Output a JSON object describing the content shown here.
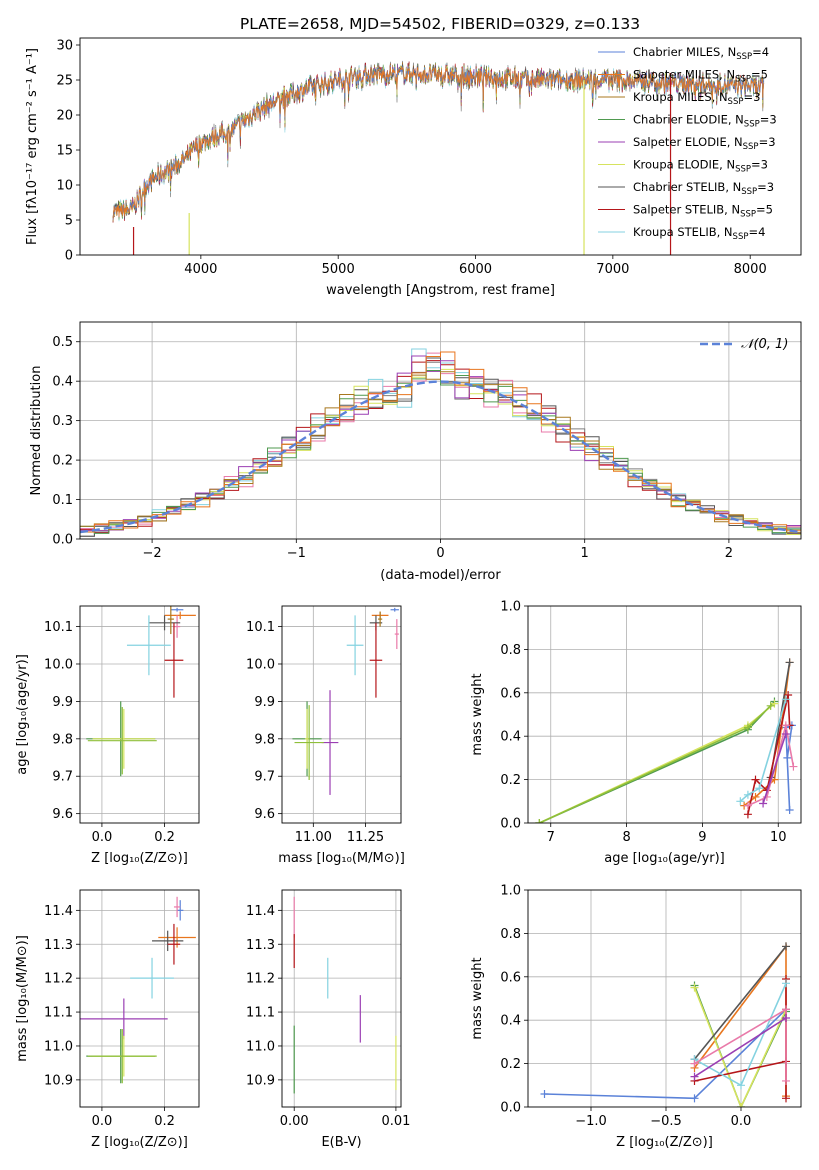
{
  "spectrum_title": "PLATE=2658, MJD=54502, FIBERID=0329, z=0.133",
  "palette": [
    "#5b82d8",
    "#e8761e",
    "#a8781f",
    "#4f9a4f",
    "#9b3fb3",
    "#d6e35e",
    "#555555",
    "#b5161a",
    "#84d2e0",
    "#e97aa9",
    "#7f7f7f",
    "#8fbf3a"
  ],
  "chart_data": [
    {
      "id": "spectrum",
      "type": "line",
      "title": "PLATE=2658, MJD=54502, FIBERID=0329, z=0.133",
      "xlabel": "wavelength [Angstrom, rest frame]",
      "ylabel": "Flux [fλ10⁻¹⁷ erg cm⁻² s⁻¹ A⁻¹]",
      "xlim": [
        3120,
        8370
      ],
      "ylim": [
        0,
        31
      ],
      "xticks": [
        4000,
        5000,
        6000,
        7000,
        8000
      ],
      "yticks": [
        0,
        5,
        10,
        15,
        20,
        25,
        30
      ],
      "grid": false,
      "legend": "top-right",
      "continuum": [
        [
          3360,
          6.2
        ],
        [
          3500,
          6.5
        ],
        [
          3600,
          10
        ],
        [
          3700,
          11.5
        ],
        [
          3800,
          12.5
        ],
        [
          3900,
          14
        ],
        [
          4000,
          16
        ],
        [
          4100,
          17
        ],
        [
          4200,
          17.5
        ],
        [
          4300,
          19
        ],
        [
          4400,
          20.5
        ],
        [
          4600,
          22.5
        ],
        [
          4800,
          24
        ],
        [
          5000,
          25
        ],
        [
          5200,
          25.8
        ],
        [
          5500,
          26
        ],
        [
          6000,
          25.5
        ],
        [
          6500,
          25
        ],
        [
          7000,
          25
        ],
        [
          7500,
          24.5
        ],
        [
          8100,
          24
        ]
      ],
      "series": [
        {
          "name": "Chabrier MILES, N_SSP=4"
        },
        {
          "name": "Salpeter MILES, N_SSP=5"
        },
        {
          "name": "Kroupa MILES, N_SSP=3"
        },
        {
          "name": "Chabrier ELODIE, N_SSP=3"
        },
        {
          "name": "Salpeter ELODIE, N_SSP=3"
        },
        {
          "name": "Kroupa ELODIE, N_SSP=3"
        },
        {
          "name": "Chabrier STELIB, N_SSP=3"
        },
        {
          "name": "Salpeter STELIB, N_SSP=5"
        },
        {
          "name": "Kroupa STELIB, N_SSP=4"
        }
      ],
      "legend_labels": [
        {
          "label": "Chabrier MILES, N",
          "sub": "SSP",
          "val": "=4"
        },
        {
          "label": "Salpeter MILES, N",
          "sub": "SSP",
          "val": "=5"
        },
        {
          "label": "Kroupa MILES, N",
          "sub": "SSP",
          "val": "=3"
        },
        {
          "label": "Chabrier ELODIE, N",
          "sub": "SSP",
          "val": "=3"
        },
        {
          "label": "Salpeter ELODIE, N",
          "sub": "SSP",
          "val": "=3"
        },
        {
          "label": "Kroupa ELODIE, N",
          "sub": "SSP",
          "val": "=3"
        },
        {
          "label": "Chabrier STELIB, N",
          "sub": "SSP",
          "val": "=3"
        },
        {
          "label": "Salpeter STELIB, N",
          "sub": "SSP",
          "val": "=5"
        },
        {
          "label": "Kroupa STELIB, N",
          "sub": "SSP",
          "val": "=4"
        }
      ],
      "drops": [
        {
          "series": 7,
          "x": 3510,
          "y_from": 4,
          "y_to": 0
        },
        {
          "series": 5,
          "x": 3915,
          "y_from": 6,
          "y_to": 0
        },
        {
          "series": 5,
          "x": 6790,
          "y_from": 25,
          "y_to": 0
        },
        {
          "series": 7,
          "x": 7420,
          "y_from": 26,
          "y_to": 0
        }
      ]
    },
    {
      "id": "residuals",
      "type": "step",
      "xlabel": "(data-model)/error",
      "ylabel": "Normed distribution",
      "xlim": [
        -2.5,
        2.5
      ],
      "ylim": [
        0,
        0.55
      ],
      "xticks": [
        -2,
        -1,
        0,
        1,
        2
      ],
      "xtick_labels": [
        "−2",
        "−1",
        "0",
        "1",
        "2"
      ],
      "yticks": [
        0,
        0.1,
        0.2,
        0.3,
        0.4,
        0.5
      ],
      "ytick_labels": [
        "0.0",
        "0.1",
        "0.2",
        "0.3",
        "0.4",
        "0.5"
      ],
      "grid": true,
      "legend": "top-right",
      "reference_curve": {
        "name": "𝒩(0, 1)",
        "mean": 0,
        "sigma": 1
      },
      "bin_width": 0.1,
      "n_histograms": 9
    },
    {
      "id": "age-vs-Z",
      "type": "scatter-errorbar",
      "xlabel": "Z [log₁₀(Z/Z⊙)]",
      "ylabel": "age  [log₁₀(age/yr)]",
      "xlim": [
        -0.07,
        0.31
      ],
      "ylim": [
        9.575,
        10.155
      ],
      "xticks": [
        0,
        0.2
      ],
      "xtick_labels": [
        "0.0",
        "0.2"
      ],
      "yticks": [
        9.6,
        9.7,
        9.8,
        9.9,
        10.0,
        10.1
      ],
      "ytick_labels": [
        "9.6",
        "9.7",
        "9.8",
        "9.9",
        "10.0",
        "10.1"
      ],
      "grid": true,
      "points": [
        {
          "c": 0,
          "x": 0.24,
          "y": 10.145,
          "ex": 0.02,
          "ey": 0.005
        },
        {
          "c": 1,
          "x": 0.25,
          "y": 10.13,
          "ex": 0.05,
          "ey": 0.01
        },
        {
          "c": 9,
          "x": 0.24,
          "y": 10.1,
          "ex": 0.01,
          "ey": 0.03
        },
        {
          "c": 6,
          "x": 0.2,
          "y": 10.11,
          "ex": 0.05,
          "ey": 0.02
        },
        {
          "c": 2,
          "x": 0.22,
          "y": 10.12,
          "ex": 0.01,
          "ey": 0.04
        },
        {
          "c": 8,
          "x": 0.15,
          "y": 10.05,
          "ex": 0.07,
          "ey": 0.08
        },
        {
          "c": 7,
          "x": 0.23,
          "y": 10.01,
          "ex": 0.03,
          "ey": 0.1
        },
        {
          "c": 3,
          "x": 0.06,
          "y": 9.8,
          "ex": 0.11,
          "ey": 0.1
        },
        {
          "c": 5,
          "x": 0.07,
          "y": 9.8,
          "ex": 0.1,
          "ey": 0.08
        },
        {
          "c": 11,
          "x": 0.065,
          "y": 9.795,
          "ex": 0.11,
          "ey": 0.09
        }
      ]
    },
    {
      "id": "age-vs-mass",
      "type": "scatter-errorbar",
      "xlabel": "mass [log₁₀(M/M⊙)]",
      "ylabel": "",
      "xlim": [
        10.85,
        11.42
      ],
      "ylim": [
        9.575,
        10.155
      ],
      "xticks": [
        11.0,
        11.25
      ],
      "xtick_labels": [
        "11.00",
        "11.25"
      ],
      "yticks": [
        9.6,
        9.7,
        9.8,
        9.9,
        10.0,
        10.1
      ],
      "ytick_labels": [
        "9.6",
        "9.7",
        "9.8",
        "9.9",
        "10.0",
        "10.1"
      ],
      "grid": true,
      "points": [
        {
          "c": 0,
          "x": 11.39,
          "y": 10.145,
          "ex": 0.02,
          "ey": 0.005
        },
        {
          "c": 1,
          "x": 11.32,
          "y": 10.13,
          "ex": 0.04,
          "ey": 0.01
        },
        {
          "c": 9,
          "x": 11.4,
          "y": 10.08,
          "ex": 0.01,
          "ey": 0.04
        },
        {
          "c": 6,
          "x": 11.3,
          "y": 10.11,
          "ex": 0.03,
          "ey": 0.02
        },
        {
          "c": 2,
          "x": 11.32,
          "y": 10.12,
          "ex": 0.01,
          "ey": 0.02
        },
        {
          "c": 8,
          "x": 11.2,
          "y": 10.05,
          "ex": 0.04,
          "ey": 0.08
        },
        {
          "c": 7,
          "x": 11.3,
          "y": 10.01,
          "ex": 0.03,
          "ey": 0.1
        },
        {
          "c": 4,
          "x": 11.08,
          "y": 9.79,
          "ex": 0.04,
          "ey": 0.14
        },
        {
          "c": 3,
          "x": 10.97,
          "y": 9.8,
          "ex": 0.07,
          "ey": 0.1
        },
        {
          "c": 5,
          "x": 10.97,
          "y": 9.8,
          "ex": 0.01,
          "ey": 0.08
        },
        {
          "c": 11,
          "x": 10.98,
          "y": 9.79,
          "ex": 0.07,
          "ey": 0.1
        }
      ]
    },
    {
      "id": "weight-vs-age",
      "type": "line",
      "xlabel": "age  [log₁₀(age/yr)]",
      "ylabel": "mass weight",
      "xlim": [
        6.7,
        10.3
      ],
      "ylim": [
        0,
        1
      ],
      "xticks": [
        7,
        8,
        9,
        10
      ],
      "yticks": [
        0,
        0.2,
        0.4,
        0.6,
        0.8,
        1.0
      ],
      "ytick_labels": [
        "0.0",
        "0.2",
        "0.4",
        "0.6",
        "0.8",
        "1.0"
      ],
      "grid": true,
      "series": [
        {
          "c": 0,
          "points": [
            [
              10.15,
              0.06
            ],
            [
              10.1,
              0.44
            ],
            [
              10.18,
              0.45
            ],
            [
              10.12,
              0.3
            ]
          ]
        },
        {
          "c": 1,
          "points": [
            [
              9.55,
              0.08
            ],
            [
              9.7,
              0.12
            ],
            [
              9.95,
              0.2
            ],
            [
              10.15,
              0.74
            ],
            [
              10.05,
              0.45
            ]
          ]
        },
        {
          "c": 3,
          "points": [
            [
              6.85,
              0.0
            ],
            [
              9.6,
              0.43
            ],
            [
              9.95,
              0.56
            ]
          ]
        },
        {
          "c": 5,
          "points": [
            [
              6.85,
              0.0
            ],
            [
              9.6,
              0.45
            ],
            [
              9.95,
              0.55
            ]
          ]
        },
        {
          "c": 11,
          "points": [
            [
              6.85,
              0.0
            ],
            [
              9.6,
              0.44
            ],
            [
              9.9,
              0.54
            ]
          ]
        },
        {
          "c": 6,
          "points": [
            [
              9.9,
              0.21
            ],
            [
              10.15,
              0.74
            ]
          ]
        },
        {
          "c": 7,
          "points": [
            [
              9.6,
              0.04
            ],
            [
              9.7,
              0.2
            ],
            [
              9.85,
              0.15
            ],
            [
              10.13,
              0.59
            ],
            [
              10.15,
              0.45
            ]
          ]
        },
        {
          "c": 8,
          "points": [
            [
              9.5,
              0.1
            ],
            [
              9.6,
              0.13
            ],
            [
              9.75,
              0.16
            ],
            [
              10.1,
              0.57
            ]
          ]
        },
        {
          "c": 9,
          "points": [
            [
              9.6,
              0.08
            ],
            [
              9.85,
              0.12
            ],
            [
              10.1,
              0.45
            ],
            [
              10.2,
              0.26
            ]
          ]
        },
        {
          "c": 4,
          "points": [
            [
              9.8,
              0.09
            ],
            [
              10.1,
              0.41
            ]
          ]
        }
      ]
    },
    {
      "id": "mass-vs-Z",
      "type": "scatter-errorbar",
      "xlabel": "Z [log₁₀(Z/Z⊙)]",
      "ylabel": "mass [log₁₀(M/M⊙)]",
      "xlim": [
        -0.07,
        0.31
      ],
      "ylim": [
        10.82,
        11.46
      ],
      "xticks": [
        0,
        0.2
      ],
      "xtick_labels": [
        "0.0",
        "0.2"
      ],
      "yticks": [
        10.9,
        11.0,
        11.1,
        11.2,
        11.3,
        11.4
      ],
      "ytick_labels": [
        "10.9",
        "11.0",
        "11.1",
        "11.2",
        "11.3",
        "11.4"
      ],
      "grid": true,
      "points": [
        {
          "c": 0,
          "x": 0.25,
          "y": 11.4,
          "ex": 0.01,
          "ey": 0.03
        },
        {
          "c": 9,
          "x": 0.24,
          "y": 11.41,
          "ex": 0.01,
          "ey": 0.03
        },
        {
          "c": 1,
          "x": 0.24,
          "y": 11.32,
          "ex": 0.06,
          "ey": 0.03
        },
        {
          "c": 6,
          "x": 0.21,
          "y": 11.31,
          "ex": 0.05,
          "ey": 0.03
        },
        {
          "c": 7,
          "x": 0.23,
          "y": 11.3,
          "ex": 0.02,
          "ey": 0.06
        },
        {
          "c": 8,
          "x": 0.16,
          "y": 11.2,
          "ex": 0.07,
          "ey": 0.06
        },
        {
          "c": 4,
          "x": 0.07,
          "y": 11.08,
          "ex": 0.14,
          "ey": 0.06
        },
        {
          "c": 3,
          "x": 0.06,
          "y": 10.97,
          "ex": 0.11,
          "ey": 0.08
        },
        {
          "c": 5,
          "x": 0.07,
          "y": 10.97,
          "ex": 0.1,
          "ey": 0.06
        },
        {
          "c": 11,
          "x": 0.065,
          "y": 10.97,
          "ex": 0.11,
          "ey": 0.08
        }
      ]
    },
    {
      "id": "mass-vs-ebv",
      "type": "scatter-errorbar",
      "xlabel": "E(B-V)",
      "ylabel": "",
      "xlim": [
        -0.0012,
        0.0105
      ],
      "ylim": [
        10.82,
        11.46
      ],
      "xticks": [
        0,
        0.01
      ],
      "xtick_labels": [
        "0.00",
        "0.01"
      ],
      "yticks": [
        10.9,
        11.0,
        11.1,
        11.2,
        11.3,
        11.4
      ],
      "ytick_labels": [
        "10.9",
        "11.0",
        "11.1",
        "11.2",
        "11.3",
        "11.4"
      ],
      "grid": true,
      "points": [
        {
          "c": 9,
          "x": 0.0,
          "y": 11.38,
          "ex": 0.0,
          "ey": 0.06
        },
        {
          "c": 7,
          "x": 0.0,
          "y": 11.28,
          "ex": 0.0,
          "ey": 0.05
        },
        {
          "c": 3,
          "x": 0.0,
          "y": 10.96,
          "ex": 0.0,
          "ey": 0.1
        },
        {
          "c": 8,
          "x": 0.0033,
          "y": 11.2,
          "ex": 0.0,
          "ey": 0.06
        },
        {
          "c": 4,
          "x": 0.0065,
          "y": 11.08,
          "ex": 0.0,
          "ey": 0.07
        },
        {
          "c": 5,
          "x": 0.01,
          "y": 10.95,
          "ex": 0.0,
          "ey": 0.08
        }
      ]
    },
    {
      "id": "weight-vs-Z",
      "type": "line",
      "xlabel": "Z [log₁₀(Z/Z⊙)]",
      "ylabel": "mass weight",
      "xlim": [
        -1.42,
        0.4
      ],
      "ylim": [
        0,
        1
      ],
      "xticks": [
        -1.0,
        -0.5,
        0.0
      ],
      "xtick_labels": [
        "−1.0",
        "−0.5",
        "0.0"
      ],
      "yticks": [
        0,
        0.2,
        0.4,
        0.6,
        0.8,
        1.0
      ],
      "ytick_labels": [
        "0.0",
        "0.2",
        "0.4",
        "0.6",
        "0.8",
        "1.0"
      ],
      "grid": true,
      "series": [
        {
          "c": 0,
          "points": [
            [
              -1.31,
              0.06
            ],
            [
              -0.31,
              0.04
            ],
            [
              0.3,
              0.45
            ],
            [
              0.3,
              0.45
            ]
          ]
        },
        {
          "c": 1,
          "points": [
            [
              -0.31,
              0.18
            ],
            [
              0.3,
              0.74
            ],
            [
              0.3,
              0.05
            ]
          ]
        },
        {
          "c": 3,
          "points": [
            [
              -0.31,
              0.56
            ],
            [
              0.0,
              0.0
            ],
            [
              0.3,
              0.44
            ]
          ]
        },
        {
          "c": 5,
          "points": [
            [
              -0.31,
              0.55
            ],
            [
              0.0,
              0.0
            ],
            [
              0.3,
              0.45
            ]
          ]
        },
        {
          "c": 6,
          "points": [
            [
              -0.31,
              0.22
            ],
            [
              0.3,
              0.74
            ]
          ]
        },
        {
          "c": 7,
          "points": [
            [
              -0.31,
              0.12
            ],
            [
              0.3,
              0.21
            ],
            [
              0.3,
              0.59
            ],
            [
              0.3,
              0.04
            ]
          ]
        },
        {
          "c": 8,
          "points": [
            [
              -0.31,
              0.22
            ],
            [
              0.0,
              0.1
            ],
            [
              0.3,
              0.57
            ]
          ]
        },
        {
          "c": 9,
          "points": [
            [
              -0.31,
              0.2
            ],
            [
              0.3,
              0.45
            ],
            [
              0.3,
              0.12
            ]
          ]
        },
        {
          "c": 4,
          "points": [
            [
              -0.31,
              0.14
            ],
            [
              0.3,
              0.41
            ]
          ]
        }
      ]
    }
  ]
}
